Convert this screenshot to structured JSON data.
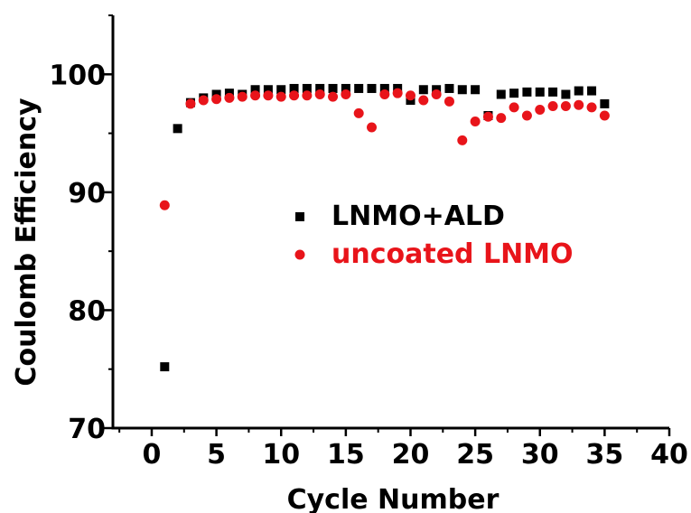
{
  "chart_data": {
    "type": "scatter",
    "xlabel": "Cycle Number",
    "ylabel": "Coulomb Efficiency",
    "xlim": [
      -3,
      40
    ],
    "ylim": [
      70,
      105
    ],
    "xticks": [
      0,
      5,
      10,
      15,
      20,
      25,
      30,
      35,
      40
    ],
    "yticks": [
      70,
      80,
      90,
      100
    ],
    "grid": false,
    "legend_position": "center",
    "series": [
      {
        "name": "LNMO+ALD",
        "marker": "square",
        "color": "#000000",
        "x": [
          1,
          2,
          3,
          4,
          5,
          6,
          7,
          8,
          9,
          10,
          11,
          12,
          13,
          14,
          15,
          16,
          17,
          18,
          19,
          20,
          21,
          22,
          23,
          24,
          25,
          26,
          27,
          28,
          29,
          30,
          31,
          32,
          33,
          34,
          35
        ],
        "y": [
          75.2,
          95.4,
          97.6,
          98.0,
          98.3,
          98.4,
          98.3,
          98.7,
          98.7,
          98.7,
          98.8,
          98.8,
          98.8,
          98.8,
          98.8,
          98.8,
          98.8,
          98.8,
          98.8,
          97.8,
          98.7,
          98.7,
          98.8,
          98.7,
          98.7,
          96.5,
          98.3,
          98.4,
          98.5,
          98.5,
          98.5,
          98.3,
          98.6,
          98.6,
          97.5
        ]
      },
      {
        "name": "uncoated LNMO",
        "marker": "circle",
        "color": "#e8141a",
        "x": [
          1,
          3,
          4,
          5,
          6,
          7,
          8,
          9,
          10,
          11,
          12,
          13,
          14,
          15,
          16,
          17,
          18,
          19,
          20,
          21,
          22,
          23,
          24,
          25,
          26,
          27,
          28,
          29,
          30,
          31,
          32,
          33,
          34,
          35
        ],
        "y": [
          88.9,
          97.5,
          97.8,
          97.9,
          98.0,
          98.1,
          98.2,
          98.2,
          98.1,
          98.2,
          98.2,
          98.3,
          98.1,
          98.3,
          96.7,
          95.5,
          98.3,
          98.4,
          98.2,
          97.8,
          98.3,
          97.7,
          94.4,
          96.0,
          96.4,
          96.3,
          97.2,
          96.5,
          97.0,
          97.3,
          97.3,
          97.4,
          97.2,
          96.5
        ]
      }
    ]
  }
}
